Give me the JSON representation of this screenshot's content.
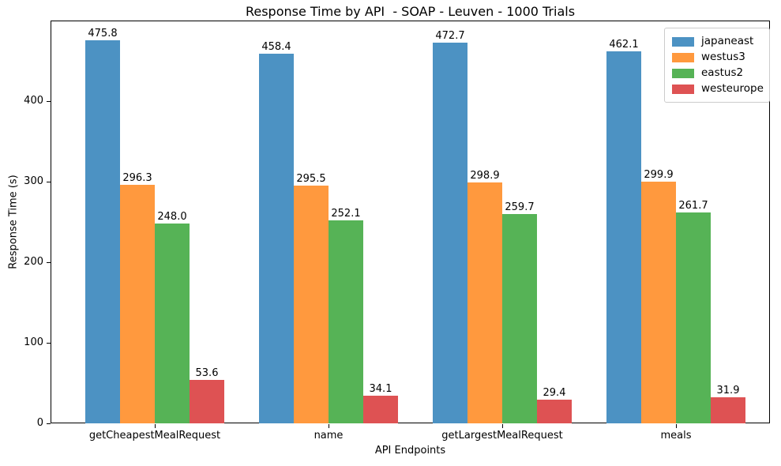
{
  "chart_data": {
    "type": "bar",
    "title": "Response Time by API  - SOAP - Leuven - 1000 Trials",
    "xlabel": "API Endpoints",
    "ylabel": "Response Time (s)",
    "categories": [
      "getCheapestMealRequest",
      "name",
      "getLargestMealRequest",
      "meals"
    ],
    "series": [
      {
        "name": "japaneast",
        "color": "#4C92C3",
        "values": [
          475.8,
          458.4,
          472.7,
          462.1
        ]
      },
      {
        "name": "westus3",
        "color": "#FF993E",
        "values": [
          296.3,
          295.5,
          298.9,
          299.9
        ]
      },
      {
        "name": "eastus2",
        "color": "#56B356",
        "values": [
          248.0,
          252.1,
          259.7,
          261.7
        ]
      },
      {
        "name": "westeurope",
        "color": "#DE5253",
        "values": [
          53.6,
          34.1,
          29.4,
          31.9
        ]
      }
    ],
    "ylim": [
      0,
      500
    ],
    "yticks": [
      0,
      100,
      200,
      300,
      400
    ],
    "bar_value_labels": true,
    "value_label_decimals": 1,
    "legend_position": "upper-right",
    "grid": false,
    "background": "#ffffff"
  }
}
